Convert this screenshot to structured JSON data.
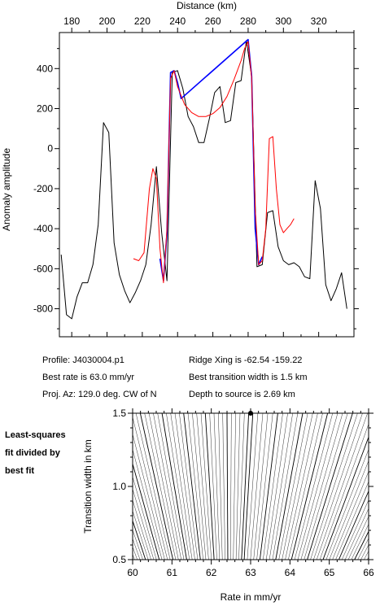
{
  "chart_data": [
    {
      "type": "line",
      "xlabel": "Distance (km)",
      "ylabel": "Anomaly amplitude",
      "xlim": [
        173,
        340
      ],
      "ylim": [
        -940,
        580
      ],
      "xticks": [
        180,
        200,
        220,
        240,
        260,
        280,
        300,
        320
      ],
      "yticks": [
        400,
        200,
        0,
        -200,
        -400,
        -600,
        -800
      ],
      "series": [
        {
          "color": "#000000",
          "x": [
            174,
            177,
            180,
            183,
            186,
            189,
            192,
            195,
            198,
            201,
            204,
            207,
            210,
            213,
            216,
            219,
            222,
            225,
            228,
            231,
            234,
            237,
            240,
            243,
            246,
            249,
            252,
            255,
            258,
            261,
            264,
            267,
            270,
            273,
            276,
            279,
            282,
            285,
            288,
            291,
            294,
            297,
            300,
            303,
            306,
            309,
            312,
            315,
            318,
            321,
            324,
            327,
            330,
            333,
            336
          ],
          "y": [
            -530,
            -830,
            -850,
            -740,
            -670,
            -670,
            -580,
            -380,
            130,
            80,
            -470,
            -630,
            -710,
            -770,
            -720,
            -660,
            -580,
            -380,
            -90,
            -420,
            -660,
            380,
            390,
            300,
            160,
            110,
            30,
            30,
            150,
            280,
            310,
            130,
            140,
            330,
            340,
            540,
            360,
            -590,
            -580,
            -320,
            -310,
            -490,
            -560,
            -580,
            -570,
            -590,
            -640,
            -650,
            -160,
            -300,
            -680,
            -760,
            -700,
            -620,
            -800
          ]
        },
        {
          "color": "#0000ff",
          "x": [
            230,
            232,
            234,
            236,
            238,
            240,
            242,
            280,
            282,
            284,
            286,
            288
          ],
          "y": [
            -550,
            -660,
            -420,
            380,
            390,
            330,
            250,
            545,
            360,
            -400,
            -580,
            -540
          ]
        },
        {
          "color": "#ff0000",
          "x": [
            215,
            218,
            221,
            224,
            226,
            228,
            230,
            232,
            234,
            236,
            238,
            240,
            244,
            248,
            252,
            256,
            260,
            264,
            268,
            272,
            276,
            278,
            280,
            282,
            284,
            286,
            288,
            290,
            292,
            294,
            296,
            298,
            300,
            302,
            304,
            306
          ],
          "y": [
            -550,
            -560,
            -520,
            -200,
            -100,
            -150,
            -500,
            -670,
            -400,
            350,
            390,
            310,
            220,
            180,
            160,
            160,
            175,
            205,
            260,
            345,
            440,
            500,
            535,
            350,
            -300,
            -580,
            -560,
            -400,
            50,
            60,
            -200,
            -380,
            -420,
            -400,
            -380,
            -350
          ]
        }
      ]
    },
    {
      "type": "contour",
      "xlabel": "Rate in mm/yr",
      "ylabel": "Transition width in km",
      "xlim": [
        60,
        66
      ],
      "ylim": [
        0.5,
        1.5
      ],
      "xticks": [
        60,
        61,
        62,
        63,
        64,
        65,
        66
      ],
      "yticks": [
        1.5,
        1.0,
        0.5
      ],
      "best_fit": {
        "rate": 63.0,
        "width": 1.5
      }
    }
  ],
  "info": {
    "profile": "Profile: J4030004.p1",
    "ridge_xing": "Ridge Xing is -62.54 -159.22",
    "best_rate": "Best rate is 63.0 mm/yr",
    "best_width": "Best transition width is 1.5 km",
    "proj_az": "Proj. Az: 129.0 deg. CW of N",
    "depth": "Depth to source is   2.69 km"
  },
  "side_note": [
    "Least-squares",
    "fit divided by",
    "best fit"
  ]
}
